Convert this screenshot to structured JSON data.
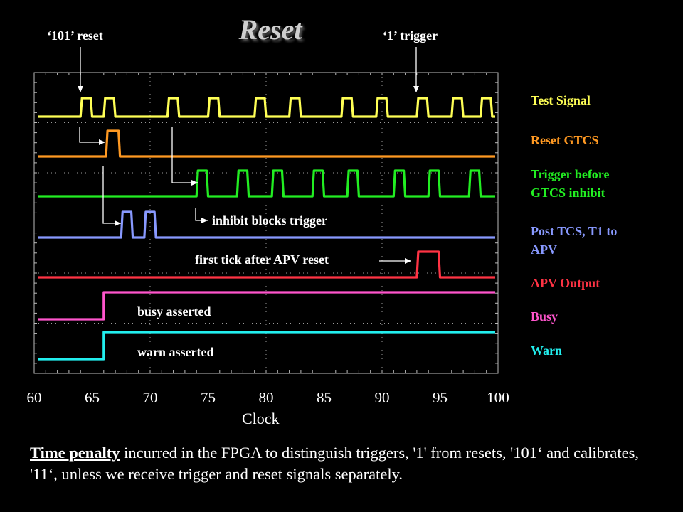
{
  "title": "Reset",
  "annotations": {
    "reset_101": "‘101’ reset",
    "trigger_1": "‘1’ trigger",
    "inhibit": "inhibit blocks trigger",
    "first_tick": "first tick after APV reset",
    "busy": "busy asserted",
    "warn": "warn asserted"
  },
  "footnote": {
    "lead": "Time penalty",
    "text": " incurred in the FPGA to distinguish triggers, '1' from resets, '101‘ and calibrates, '11‘, unless we receive trigger and reset signals separately."
  },
  "chart_data": {
    "type": "line",
    "xlabel": "Clock",
    "ylabel": "",
    "xlim": [
      60,
      100
    ],
    "xticks": [
      "60",
      "65",
      "70",
      "75",
      "80",
      "85",
      "90",
      "95",
      "100"
    ],
    "grid": true,
    "legend_position": "right",
    "series": [
      {
        "name": "Test Signal",
        "color": "#ffff55",
        "level": "low",
        "pulses": [
          [
            64,
            65
          ],
          [
            66,
            67
          ],
          [
            71.5,
            72.5
          ],
          [
            75,
            76
          ],
          [
            79,
            80
          ],
          [
            82,
            83
          ],
          [
            86.5,
            87.5
          ],
          [
            89.5,
            90.5
          ],
          [
            93,
            94
          ],
          [
            96,
            97
          ],
          [
            98.5,
            99.5
          ]
        ]
      },
      {
        "name": "Reset GTCS",
        "color": "#ff9922",
        "pulses": [
          [
            66.2,
            67.4
          ]
        ]
      },
      {
        "name": "Trigger before GTCS inhibit",
        "color": "#22ee22",
        "pulses": [
          [
            74,
            75
          ],
          [
            77.5,
            78.5
          ],
          [
            80.5,
            81.5
          ],
          [
            84,
            85
          ],
          [
            87,
            88
          ],
          [
            91,
            92
          ],
          [
            94,
            95
          ],
          [
            97.5,
            98.5
          ]
        ]
      },
      {
        "name": "Post TCS, T1 to APV",
        "color": "#8899ff",
        "pulses": [
          [
            67.5,
            68.5
          ],
          [
            69.5,
            70.5
          ]
        ]
      },
      {
        "name": "APV Output",
        "color": "#ff3344",
        "pulses": [
          [
            93,
            95
          ]
        ]
      },
      {
        "name": "Busy",
        "color": "#ff55cc",
        "step_at": 66
      },
      {
        "name": "Warn",
        "color": "#22eeee",
        "step_at": 66
      }
    ]
  }
}
